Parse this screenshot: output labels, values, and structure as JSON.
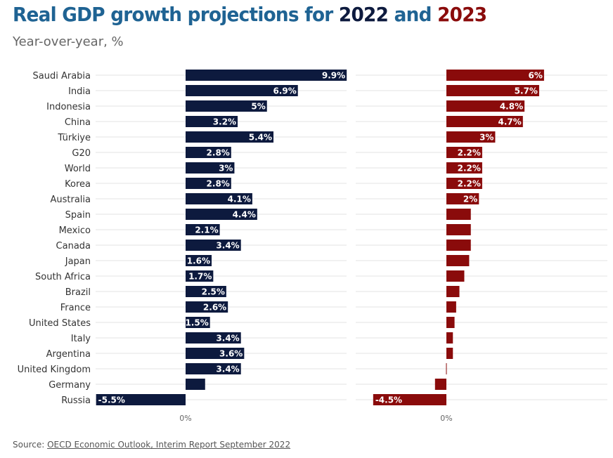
{
  "header": {
    "title_prefix": "Real GDP growth projections for ",
    "title_year1": "2022",
    "title_and": " and ",
    "title_year2": "2023",
    "subtitle": "Year-over-year, %"
  },
  "footer": {
    "source_prefix": "Source: ",
    "source_link": "OECD Economic Outlook, Interim Report September 2022"
  },
  "colors": {
    "series_2022": "#0d1a3e",
    "series_2023": "#8a0b0b",
    "title_blue": "#1f6393",
    "grid": "#e3e3e3",
    "label_text": "#333333"
  },
  "chart_data": {
    "type": "bar",
    "orientation": "horizontal",
    "categories": [
      "Saudi Arabia",
      "India",
      "Indonesia",
      "China",
      "Türkiye",
      "G20",
      "World",
      "Korea",
      "Australia",
      "Spain",
      "Mexico",
      "Canada",
      "Japan",
      "South Africa",
      "Brazil",
      "France",
      "United States",
      "Italy",
      "Argentina",
      "United Kingdom",
      "Germany",
      "Russia"
    ],
    "series": [
      {
        "name": "2022",
        "values": [
          9.9,
          6.9,
          5,
          3.2,
          5.4,
          2.8,
          3,
          2.8,
          4.1,
          4.4,
          2.1,
          3.4,
          1.6,
          1.7,
          2.5,
          2.6,
          1.5,
          3.4,
          3.6,
          3.4,
          1.2,
          -5.5
        ],
        "labels": [
          "9.9%",
          "6.9%",
          "5%",
          "3.2%",
          "5.4%",
          "2.8%",
          "3%",
          "2.8%",
          "4.1%",
          "4.4%",
          "2.1%",
          "3.4%",
          "1.6%",
          "1.7%",
          "2.5%",
          "2.6%",
          "1.5%",
          "3.4%",
          "3.6%",
          "3.4%",
          "",
          "-5.5%"
        ]
      },
      {
        "name": "2023",
        "values": [
          6,
          5.7,
          4.8,
          4.7,
          3,
          2.2,
          2.2,
          2.2,
          2,
          1.5,
          1.5,
          1.5,
          1.4,
          1.1,
          0.8,
          0.6,
          0.5,
          0.4,
          0.4,
          0,
          -0.7,
          -4.5
        ],
        "labels": [
          "6%",
          "5.7%",
          "4.8%",
          "4.7%",
          "3%",
          "2.2%",
          "2.2%",
          "2.2%",
          "2%",
          "",
          "",
          "",
          "",
          "",
          "",
          "",
          "",
          "",
          "",
          "",
          "",
          "-4.5%"
        ]
      }
    ],
    "zero_tick_label": "0%",
    "xlim": [
      -5.5,
      9.9
    ],
    "grid": true
  }
}
